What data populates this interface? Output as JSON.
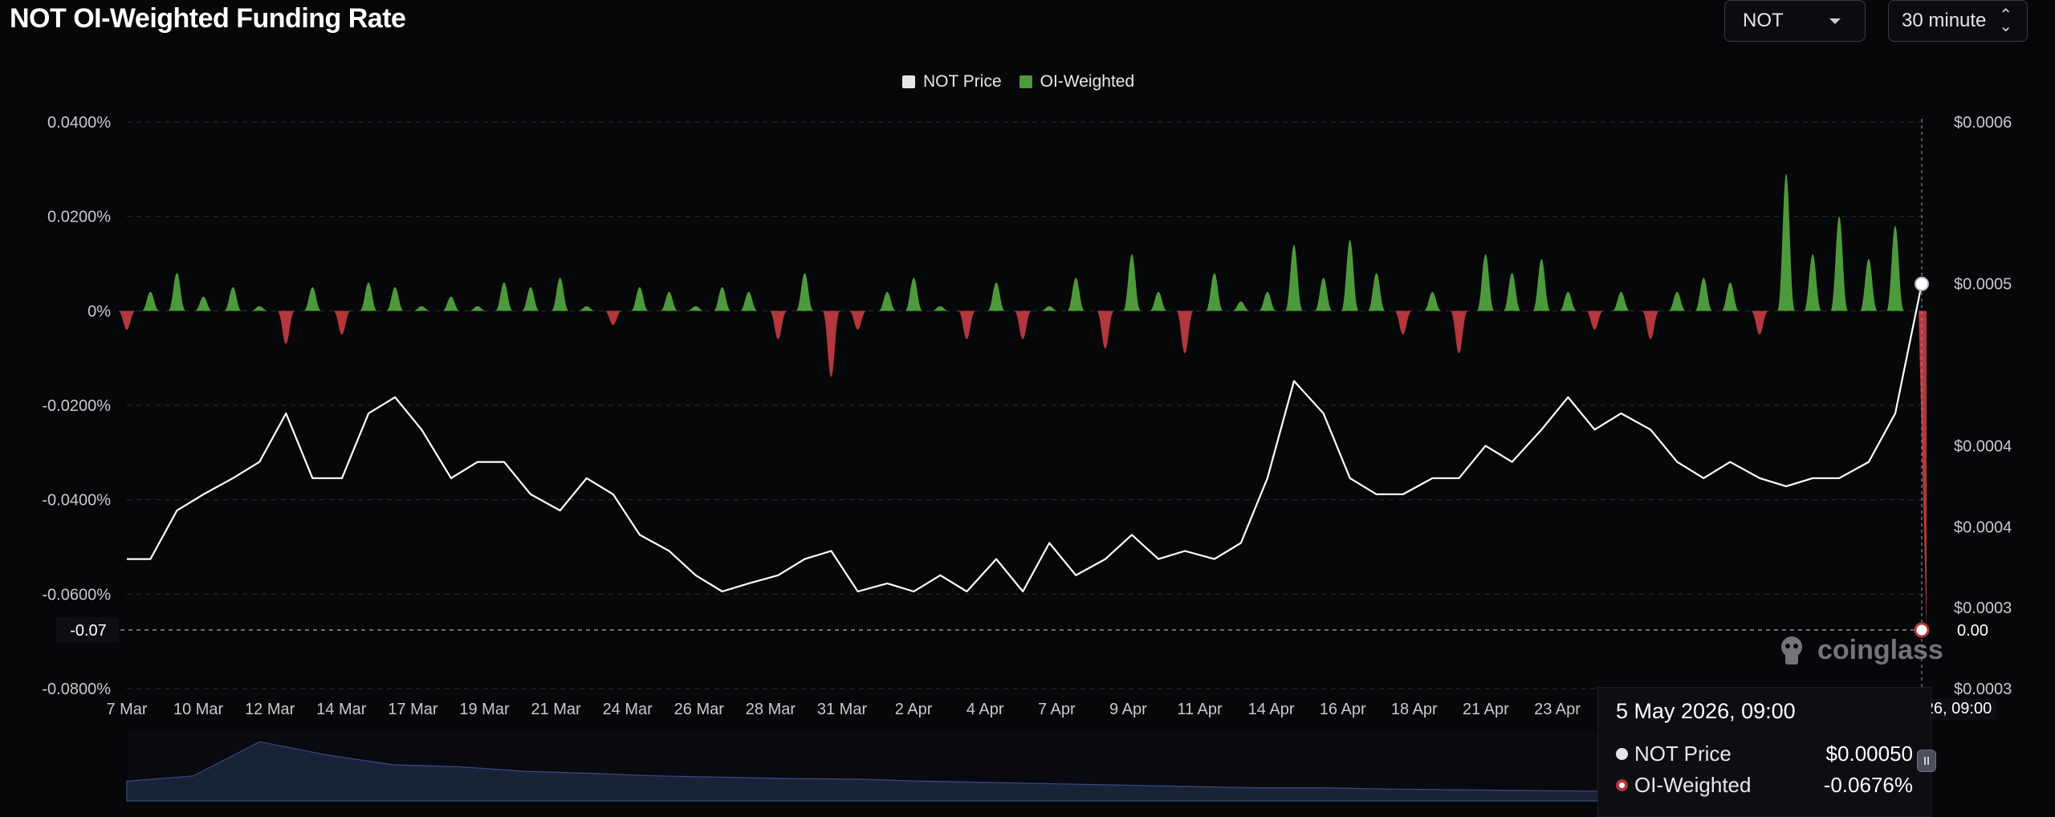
{
  "header": {
    "title": "NOT OI-Weighted Funding Rate",
    "coin_value": "NOT",
    "interval_value": "30 minute"
  },
  "colors": {
    "background": "#060709",
    "positive": "#4d9a3c",
    "negative": "#b3373c",
    "price_line": "#ffffff",
    "grid": "#2a2c31",
    "navigator": "#1a2238"
  },
  "tooltip": {
    "date": "5 May 2026, 09:00",
    "price_label": "NOT Price",
    "price_value": "$0.00050",
    "oi_label": "OI-Weighted",
    "oi_value": "-0.0676%"
  },
  "crosshair": {
    "left_label": "-0.07",
    "right_label": "0.00",
    "time_flag": "y 2026, 09:00"
  },
  "watermark": {
    "text": "coinglass"
  },
  "chart_data": {
    "type": "area",
    "title": "NOT OI-Weighted Funding Rate",
    "legend": [
      "NOT Price",
      "OI-Weighted"
    ],
    "legend_position": "top-center",
    "grid": true,
    "x_ticks": [
      "7 Mar",
      "10 Mar",
      "12 Mar",
      "14 Mar",
      "17 Mar",
      "19 Mar",
      "21 Mar",
      "24 Mar",
      "26 Mar",
      "28 Mar",
      "31 Mar",
      "2 Apr",
      "4 Apr",
      "7 Apr",
      "9 Apr",
      "11 Apr",
      "14 Apr",
      "16 Apr",
      "18 Apr",
      "21 Apr",
      "23 Apr"
    ],
    "y_left": {
      "ticks": [
        "0.0400%",
        "0.0200%",
        "0%",
        "-0.0200%",
        "-0.0400%",
        "-0.0600%",
        "-0.0800%"
      ],
      "values": [
        0.04,
        0.02,
        0,
        -0.02,
        -0.04,
        -0.06,
        -0.08
      ],
      "range": [
        -0.08,
        0.04
      ]
    },
    "y_right": {
      "ticks": [
        "$0.0006",
        "$0.0005",
        "$0.0004",
        "$0.0004",
        "$0.0003",
        "$0.0003"
      ],
      "values": [
        0.0006,
        0.0005,
        0.0004,
        0.00035,
        0.0003,
        0.00025
      ],
      "range": [
        0.00025,
        0.0006
      ]
    },
    "series": [
      {
        "name": "OI-Weighted",
        "x": [
          0,
          0.8,
          1.7,
          2.6,
          3.6,
          4.5,
          5.4,
          6.3,
          7.3,
          8.2,
          9.1,
          10,
          11,
          11.9,
          12.8,
          13.7,
          14.7,
          15.6,
          16.5,
          17.4,
          18.4,
          19.3,
          20.2,
          21.1,
          22.1,
          23,
          23.9,
          24.8,
          25.8,
          26.7,
          27.6,
          28.5,
          29.5,
          30.4,
          31.3,
          32.2,
          33.2,
          34.1,
          35,
          35.9,
          36.9,
          37.8,
          38.7,
          39.6,
          40.6,
          41.5,
          42.4,
          43.3,
          44.3,
          45.2,
          46.1,
          47,
          48,
          48.9,
          49.8,
          50.7,
          51.7,
          52.6,
          53.5,
          54.4,
          55.4,
          56.3,
          57.2,
          58.1,
          59.1,
          60,
          60.9
        ],
        "values": [
          -0.004,
          0.004,
          0.008,
          0.003,
          0.005,
          0.001,
          -0.007,
          0.005,
          -0.005,
          0.006,
          0.005,
          0.001,
          0.003,
          0.001,
          0.006,
          0.005,
          0.007,
          0.001,
          -0.003,
          0.005,
          0.004,
          0.001,
          0.005,
          0.004,
          -0.006,
          0.008,
          -0.014,
          -0.004,
          0.004,
          0.007,
          0.001,
          -0.006,
          0.006,
          -0.006,
          0.001,
          0.007,
          -0.008,
          0.012,
          0.004,
          -0.009,
          0.008,
          0.002,
          0.004,
          0.014,
          0.007,
          0.015,
          0.008,
          -0.005,
          0.004,
          -0.009,
          0.012,
          0.008,
          0.011,
          0.004,
          -0.004,
          0.004,
          -0.006,
          0.004,
          0.007,
          0.006,
          -0.005,
          0.029,
          0.012,
          0.02,
          0.011,
          0.018,
          -0.0676
        ]
      },
      {
        "name": "NOT Price",
        "x": [
          0,
          0.8,
          1.7,
          2.6,
          3.6,
          4.5,
          5.4,
          6.3,
          7.3,
          8.2,
          9.1,
          10,
          11,
          11.9,
          12.8,
          13.7,
          14.7,
          15.6,
          16.5,
          17.4,
          18.4,
          19.3,
          20.2,
          21.1,
          22.1,
          23,
          23.9,
          24.8,
          25.8,
          26.7,
          27.6,
          28.5,
          29.5,
          30.4,
          31.3,
          32.2,
          33.2,
          34.1,
          35,
          35.9,
          36.9,
          37.8,
          38.7,
          39.6,
          40.6,
          41.5,
          42.4,
          43.3,
          44.3,
          45.2,
          46.1,
          47,
          48,
          48.9,
          49.8,
          50.7,
          51.7,
          52.6,
          53.5,
          54.4,
          55.4,
          56.3,
          57.2,
          58.1,
          59.1,
          60,
          60.9
        ],
        "values": [
          0.00033,
          0.00033,
          0.00036,
          0.00037,
          0.00038,
          0.00039,
          0.00042,
          0.00038,
          0.00038,
          0.00042,
          0.00043,
          0.00041,
          0.00038,
          0.00039,
          0.00039,
          0.00037,
          0.00036,
          0.00038,
          0.00037,
          0.000345,
          0.000335,
          0.00032,
          0.00031,
          0.000315,
          0.00032,
          0.00033,
          0.000335,
          0.00031,
          0.000315,
          0.00031,
          0.00032,
          0.00031,
          0.00033,
          0.00031,
          0.00034,
          0.00032,
          0.00033,
          0.000345,
          0.00033,
          0.000335,
          0.00033,
          0.00034,
          0.00038,
          0.00044,
          0.00042,
          0.00038,
          0.00037,
          0.00037,
          0.00038,
          0.00038,
          0.0004,
          0.00039,
          0.00041,
          0.00043,
          0.00041,
          0.00042,
          0.00041,
          0.00039,
          0.00038,
          0.00039,
          0.00038,
          0.000375,
          0.00038,
          0.00038,
          0.00039,
          0.00042,
          0.0005
        ]
      }
    ]
  }
}
